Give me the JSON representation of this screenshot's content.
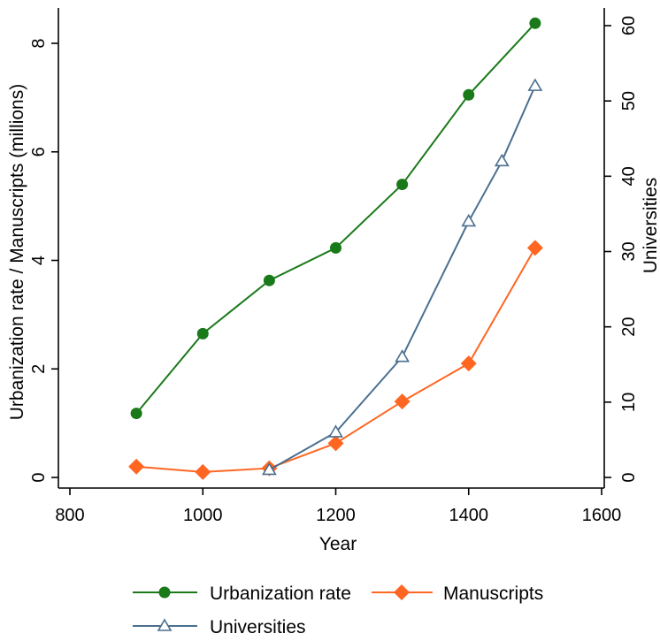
{
  "chart_data": {
    "type": "line",
    "title": "",
    "xlabel": "Year",
    "ylabel_left": "Urbanization rate / Manuscripts (millions)",
    "ylabel_right": "Universities",
    "xlim": [
      800,
      1600
    ],
    "ylim_left": [
      0,
      8.5
    ],
    "ylim_right": [
      0,
      61.2
    ],
    "xticks": [
      "800",
      "1000",
      "1200",
      "1400",
      "1600"
    ],
    "yticks_left": [
      "0",
      "2",
      "4",
      "6",
      "8"
    ],
    "yticks_right": [
      "0",
      "10",
      "20",
      "30",
      "40",
      "50",
      "60"
    ],
    "grid": false,
    "legend_position": "bottom",
    "series": [
      {
        "name": "Urbanization rate",
        "axis": "left",
        "color": "#1a7a1a",
        "marker": "circle",
        "x": [
          900,
          1000,
          1100,
          1200,
          1300,
          1400,
          1500
        ],
        "y": [
          1.18,
          2.65,
          3.63,
          4.23,
          5.4,
          7.05,
          8.37
        ]
      },
      {
        "name": "Manuscripts",
        "axis": "left",
        "color": "#ff6622",
        "marker": "diamond",
        "x": [
          900,
          1000,
          1100,
          1200,
          1300,
          1400,
          1500
        ],
        "y": [
          0.2,
          0.1,
          0.17,
          0.63,
          1.4,
          2.1,
          4.23
        ]
      },
      {
        "name": "Universities",
        "axis": "right",
        "color": "#4a6f8f",
        "marker": "triangle",
        "x": [
          1100,
          1200,
          1300,
          1400,
          1450,
          1500
        ],
        "y": [
          1,
          6,
          16,
          34,
          42,
          52
        ]
      }
    ]
  }
}
